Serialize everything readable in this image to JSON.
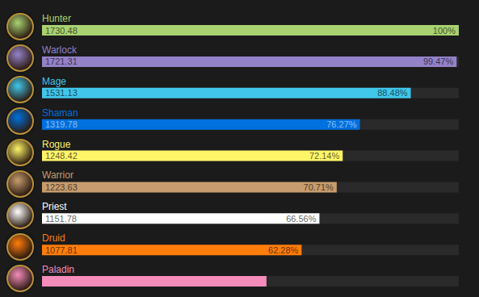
{
  "chart_data": {
    "type": "bar",
    "orientation": "horizontal",
    "categories": [
      "Hunter",
      "Warlock",
      "Mage",
      "Shaman",
      "Rogue",
      "Warrior",
      "Priest",
      "Druid",
      "Paladin"
    ],
    "values": [
      1730.48,
      1721.31,
      1531.13,
      1319.78,
      1248.42,
      1223.63,
      1151.78,
      1077.81,
      932
    ],
    "value_labels": [
      "1730.48",
      "1721.31",
      "1531.13",
      "1319.78",
      "1248.42",
      "1223.63",
      "1151.78",
      "1077.81",
      null
    ],
    "percent_labels": [
      "100%",
      "99.47%",
      "88.48%",
      "76.27%",
      "72.14%",
      "70.71%",
      "66.56%",
      "62.28%",
      null
    ],
    "colors": [
      "#a9d271",
      "#9482c9",
      "#40c7eb",
      "#0070de",
      "#fff569",
      "#c79c6e",
      "#ffffff",
      "#ff7d0a",
      "#f58cba"
    ],
    "xlim": [
      0,
      1730.48
    ],
    "xticks": [],
    "tick_labels": false,
    "data_labels": true,
    "grid": false
  }
}
